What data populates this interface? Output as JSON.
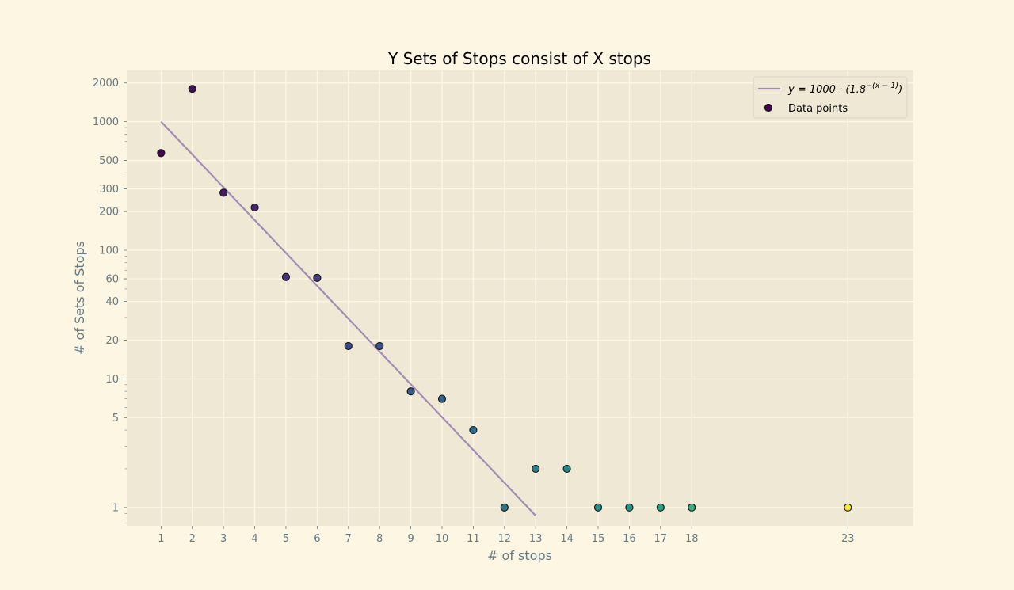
{
  "chart_data": {
    "type": "scatter",
    "title": "Y Sets of Stops consist of X stops",
    "xlabel": "# of stops",
    "ylabel": "# of Sets of Stops",
    "yscale": "log",
    "xlim": [
      -0.1,
      25.1
    ],
    "ylim": [
      0.72,
      2500
    ],
    "x_ticks": [
      1,
      2,
      3,
      4,
      5,
      6,
      7,
      8,
      9,
      10,
      11,
      12,
      13,
      14,
      15,
      16,
      17,
      18,
      23
    ],
    "y_ticks": [
      1,
      5,
      10,
      20,
      40,
      60,
      100,
      200,
      300,
      500,
      1000,
      2000
    ],
    "grid": true,
    "legend_position": "top-right",
    "series": [
      {
        "name": "Data points",
        "colormap": "viridis",
        "points": [
          {
            "x": 1,
            "y": 570
          },
          {
            "x": 2,
            "y": 1800
          },
          {
            "x": 3,
            "y": 280
          },
          {
            "x": 4,
            "y": 215
          },
          {
            "x": 5,
            "y": 62
          },
          {
            "x": 6,
            "y": 61
          },
          {
            "x": 7,
            "y": 18
          },
          {
            "x": 8,
            "y": 18
          },
          {
            "x": 9,
            "y": 8
          },
          {
            "x": 10,
            "y": 7
          },
          {
            "x": 11,
            "y": 4
          },
          {
            "x": 12,
            "y": 1
          },
          {
            "x": 13,
            "y": 2
          },
          {
            "x": 14,
            "y": 2
          },
          {
            "x": 15,
            "y": 1
          },
          {
            "x": 16,
            "y": 1
          },
          {
            "x": 17,
            "y": 1
          },
          {
            "x": 18,
            "y": 1
          },
          {
            "x": 23,
            "y": 1
          }
        ]
      }
    ],
    "fit_line": {
      "label_prefix": "y = 1000 · (1.8",
      "label_exponent": "−(x − 1)",
      "label_suffix": ")",
      "a": 1000,
      "b": 1.8,
      "x_start": 1,
      "x_end": 13,
      "color": "#a48cb3"
    },
    "colors": {
      "figure_bg": "#fdf6e3",
      "axes_bg": "#eee8d5",
      "grid": "#fdf6e3",
      "tick_text": "#657b83",
      "title_text": "#000000"
    }
  }
}
